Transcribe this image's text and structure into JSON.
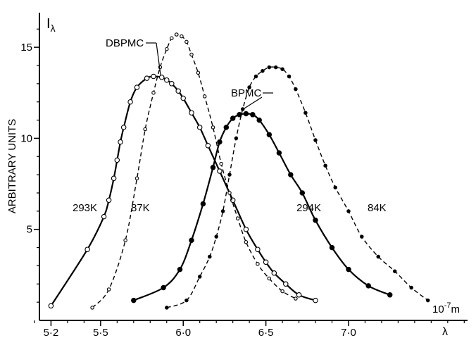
{
  "chart_data": {
    "type": "line",
    "ylabel": "ARBITRARY UNITS",
    "y_symbol": "I",
    "y_symbol_sub": "λ",
    "x_symbol": "λ",
    "x_unit": "10",
    "x_unit_exp": "-7",
    "x_unit_suffix": "m",
    "xlim": [
      5.13,
      7.72
    ],
    "ylim": [
      0,
      16.9
    ],
    "x_ticks": [
      {
        "value": 5.2,
        "label": "5·2"
      },
      {
        "value": 5.5,
        "label": "5·5"
      },
      {
        "value": 6.0,
        "label": "6·0"
      },
      {
        "value": 6.5,
        "label": "6·5"
      },
      {
        "value": 7.0,
        "label": "7·0"
      }
    ],
    "x_minor_ticks": [
      5.1,
      5.3,
      5.4,
      5.6,
      5.7,
      5.8,
      5.9,
      6.1,
      6.2,
      6.3,
      6.4,
      6.6,
      6.7,
      6.8,
      6.9,
      7.1,
      7.2,
      7.3,
      7.4,
      7.5,
      7.6,
      7.7
    ],
    "y_ticks": [
      {
        "value": 5,
        "label": "5"
      },
      {
        "value": 10,
        "label": "10"
      },
      {
        "value": 15,
        "label": "15"
      }
    ],
    "y_minor_ticks": [
      1,
      2,
      3,
      4,
      6,
      7,
      8,
      9,
      11,
      12,
      13,
      14,
      16
    ],
    "grid": false,
    "series": [
      {
        "key": "dbpmc-293",
        "style": "solid",
        "marker": "open",
        "marker_size": "large",
        "x": [
          5.2,
          5.42,
          5.52,
          5.55,
          5.58,
          5.6,
          5.62,
          5.64,
          5.68,
          5.72,
          5.78,
          5.82,
          5.87,
          5.9,
          5.93,
          5.97,
          6.0,
          6.05,
          6.1,
          6.15,
          6.22,
          6.3,
          6.38,
          6.45,
          6.5,
          6.55,
          6.62,
          6.7,
          6.8
        ],
        "y": [
          0.8,
          3.9,
          5.7,
          6.6,
          7.8,
          8.8,
          9.8,
          10.6,
          12.0,
          12.8,
          13.3,
          13.4,
          13.35,
          13.2,
          13.0,
          12.6,
          12.2,
          11.4,
          10.6,
          9.6,
          8.2,
          6.6,
          5.0,
          3.9,
          3.2,
          2.6,
          2.0,
          1.4,
          1.1
        ]
      },
      {
        "key": "dbpmc-87",
        "style": "dashed",
        "marker": "open",
        "marker_size": "small",
        "x": [
          5.45,
          5.55,
          5.65,
          5.72,
          5.77,
          5.82,
          5.86,
          5.9,
          5.93,
          5.96,
          5.99,
          6.02,
          6.05,
          6.09,
          6.13,
          6.18,
          6.23,
          6.28,
          6.33,
          6.38,
          6.45,
          6.52,
          6.6,
          6.68
        ],
        "y": [
          0.7,
          1.7,
          4.4,
          7.8,
          10.5,
          12.5,
          13.9,
          14.9,
          15.5,
          15.7,
          15.6,
          15.3,
          14.6,
          13.6,
          12.3,
          10.6,
          8.6,
          7.0,
          5.6,
          4.3,
          3.1,
          2.3,
          1.6,
          1.2
        ]
      },
      {
        "key": "bpmc-294",
        "style": "solid",
        "marker": "filled",
        "marker_size": "large",
        "x": [
          5.7,
          5.88,
          5.98,
          6.05,
          6.12,
          6.18,
          6.22,
          6.26,
          6.3,
          6.34,
          6.38,
          6.42,
          6.46,
          6.52,
          6.58,
          6.65,
          6.72,
          6.8,
          6.9,
          7.0,
          7.12,
          7.25
        ],
        "y": [
          1.1,
          1.8,
          2.8,
          4.4,
          6.4,
          8.4,
          9.8,
          10.6,
          11.1,
          11.3,
          11.35,
          11.3,
          11.0,
          10.2,
          9.2,
          8.0,
          7.0,
          5.5,
          4.0,
          2.8,
          1.9,
          1.4
        ]
      },
      {
        "key": "bpmc-84",
        "style": "dashed",
        "marker": "filled",
        "marker_size": "small",
        "x": [
          5.9,
          6.02,
          6.1,
          6.16,
          6.2,
          6.24,
          6.28,
          6.32,
          6.36,
          6.4,
          6.44,
          6.48,
          6.52,
          6.56,
          6.6,
          6.64,
          6.68,
          6.74,
          6.8,
          6.86,
          6.92,
          7.0,
          7.08,
          7.18,
          7.28,
          7.38,
          7.48
        ],
        "y": [
          0.7,
          1.1,
          2.4,
          3.5,
          4.6,
          6.0,
          8.0,
          10.0,
          11.6,
          12.8,
          13.4,
          13.7,
          13.9,
          13.9,
          13.8,
          13.4,
          12.7,
          11.4,
          9.9,
          8.5,
          7.3,
          6.0,
          4.6,
          3.5,
          2.7,
          1.8,
          1.1
        ]
      }
    ],
    "annotations": [
      {
        "text": "DBPMC",
        "pointer_to": [
          5.88,
          13.4
        ]
      },
      {
        "text": "BPMC",
        "pointer_to": [
          6.38,
          11.4
        ]
      },
      {
        "text": "293K",
        "near_series": "dbpmc-293"
      },
      {
        "text": "87K",
        "near_series": "dbpmc-87"
      },
      {
        "text": "294K",
        "near_series": "bpmc-294"
      },
      {
        "text": "84K",
        "near_series": "bpmc-84"
      }
    ]
  }
}
